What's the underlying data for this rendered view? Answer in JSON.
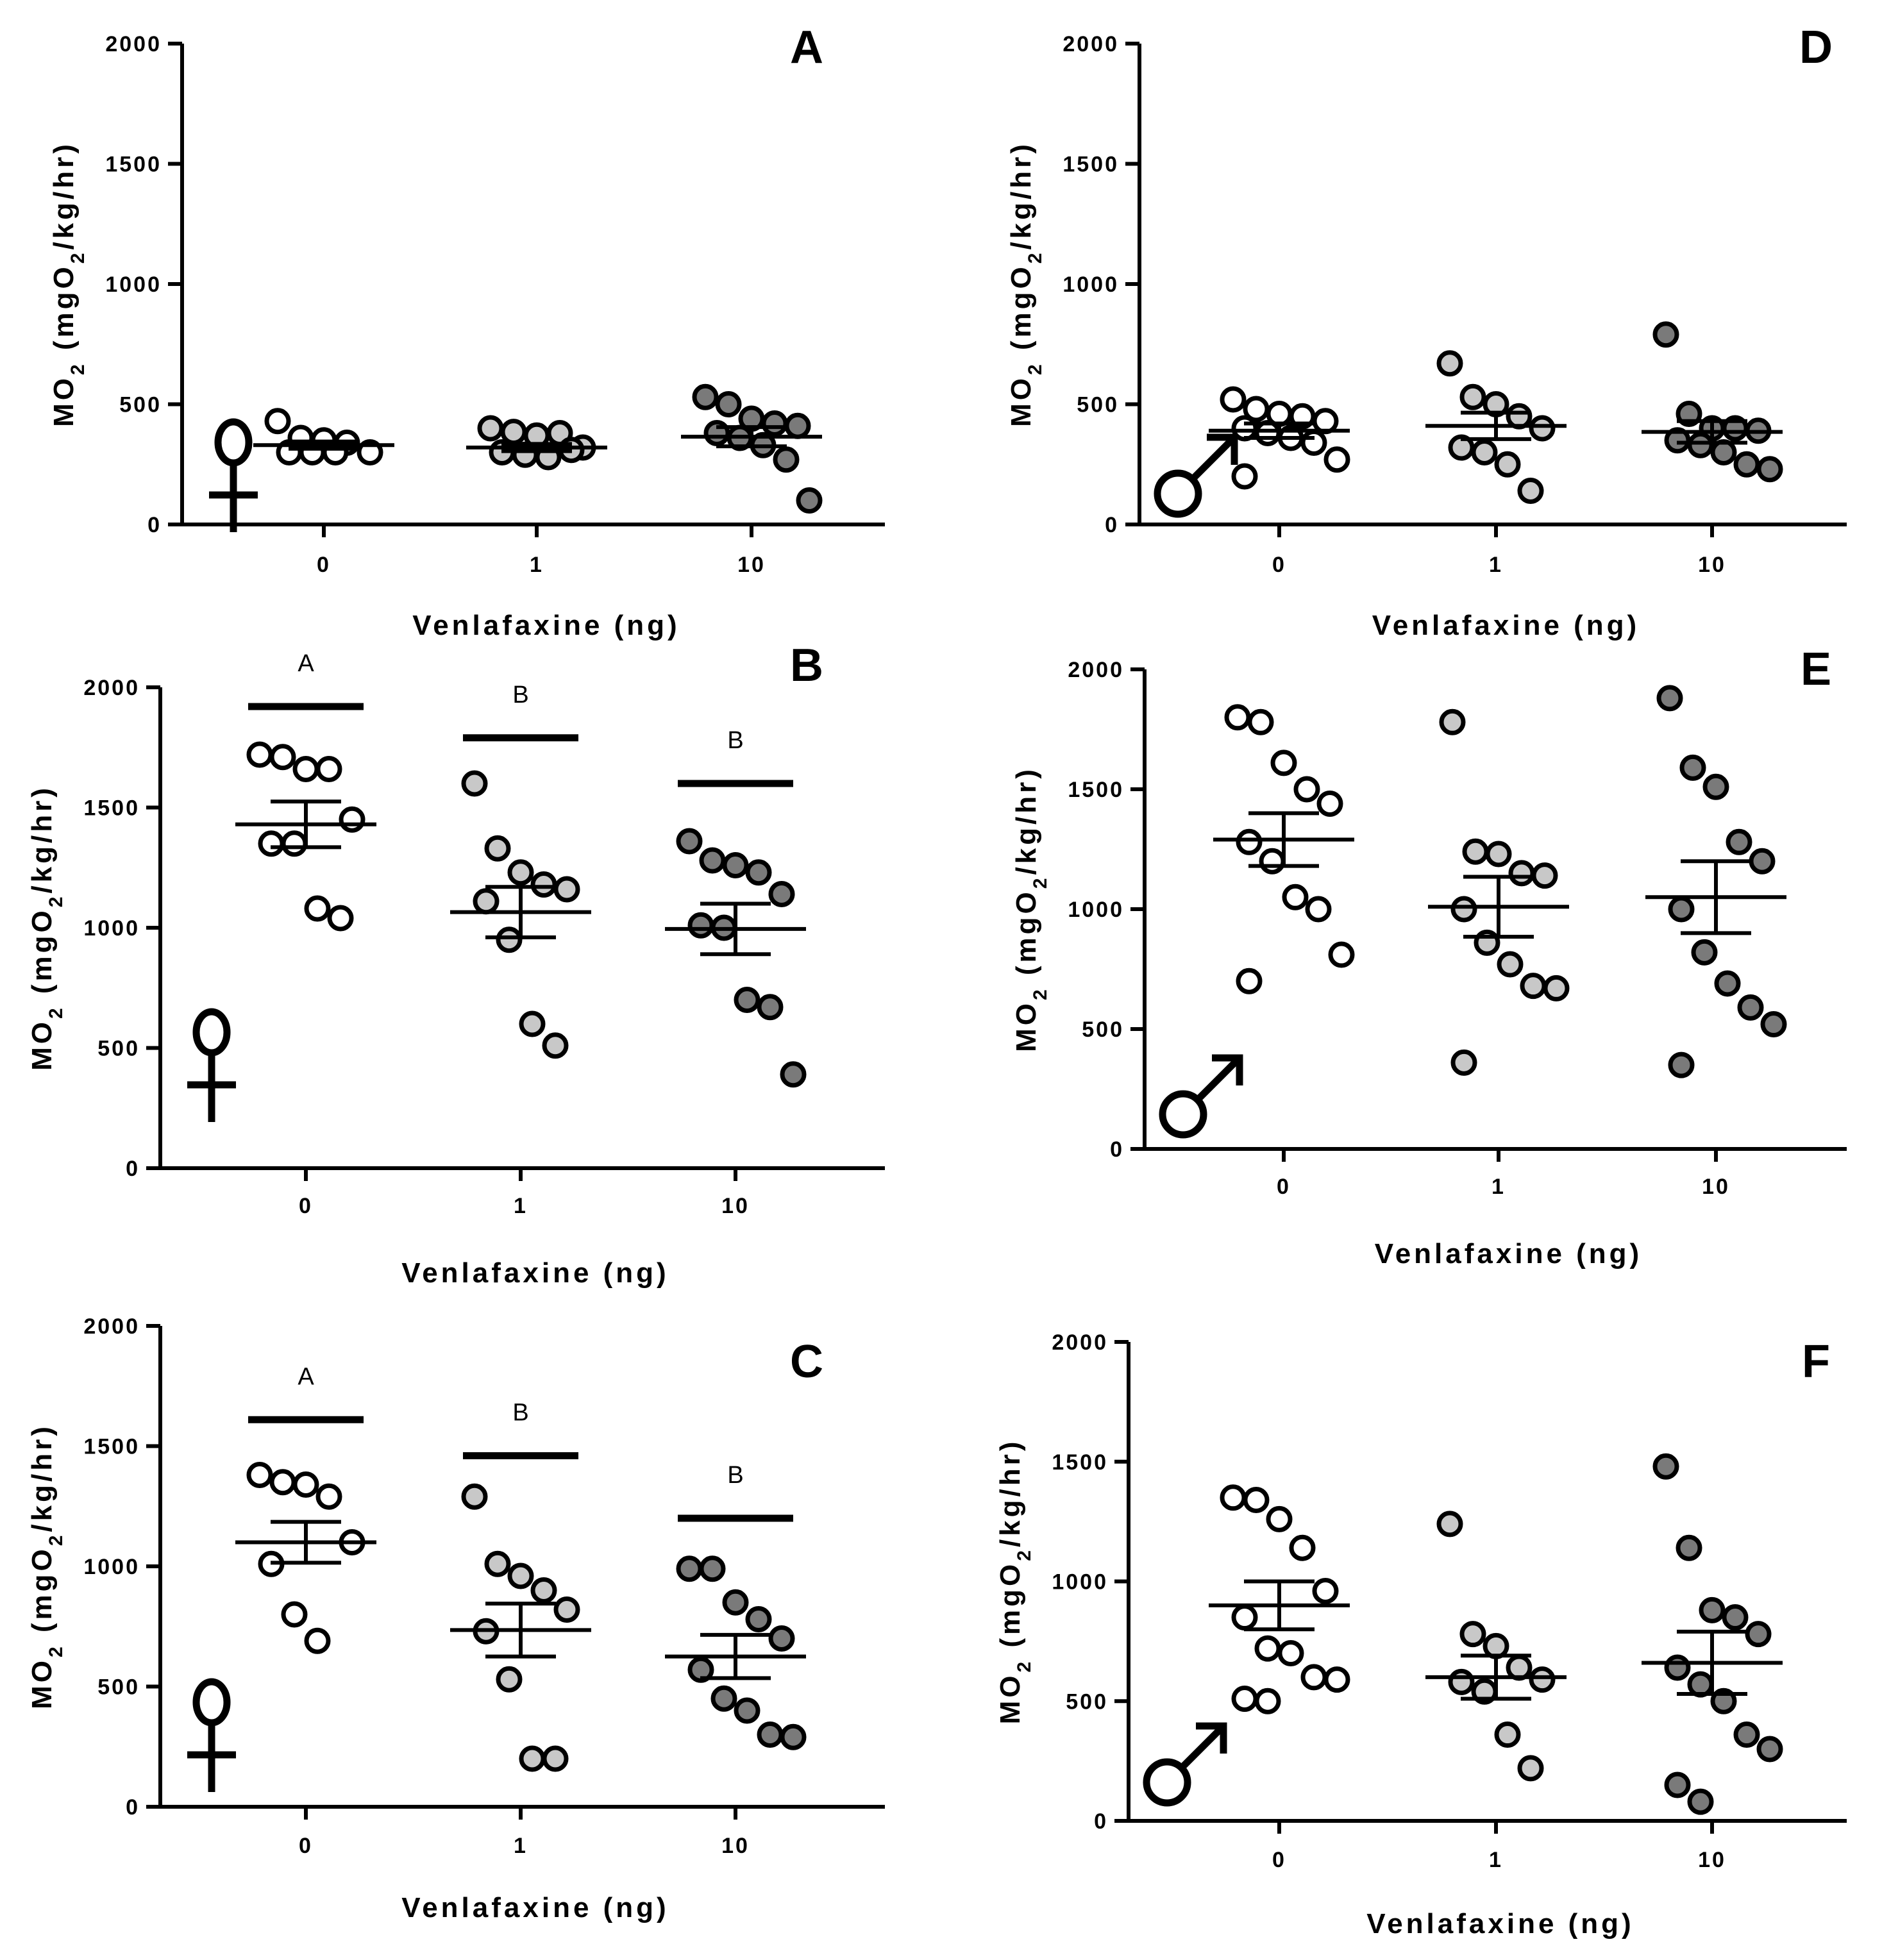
{
  "chart_data": [
    {
      "panel": "A",
      "type": "scatter",
      "sex": "female",
      "sex_symbol": "♀",
      "ylabel": "MO2 (mgO2/kg/hr)",
      "ylabel_main": "MO",
      "ylabel_sub": "2",
      "ylabel_rest": " (mgO",
      "ylabel_sub2": "2",
      "ylabel_end": "/kg/hr)",
      "xlabel": "Venlafaxine (ng)",
      "ylim": [
        0,
        2000
      ],
      "yticks": [
        "0",
        "500",
        "1000",
        "1500",
        "2000"
      ],
      "categories": [
        "0",
        "1",
        "10"
      ],
      "fills": [
        "#ffffff",
        "#c8c8c8",
        "#7a7a7a"
      ],
      "points": [
        [
          430,
          360,
          350,
          340,
          300,
          300,
          300,
          300
        ],
        [
          400,
          385,
          370,
          380,
          320,
          300,
          290,
          280,
          310
        ],
        [
          530,
          500,
          440,
          420,
          410,
          380,
          360,
          330,
          270,
          100
        ]
      ],
      "means": [
        330,
        320,
        365
      ],
      "sem": [
        15,
        15,
        40
      ],
      "sig_letters": [],
      "sig_bars": []
    },
    {
      "panel": "B",
      "type": "scatter",
      "sex": "female",
      "sex_symbol": "♀",
      "ylabel": "MO2 (mgO2/kg/hr)",
      "ylabel_main": "MO",
      "ylabel_sub": "2",
      "ylabel_rest": " (mgO",
      "ylabel_sub2": "2",
      "ylabel_end": "/kg/hr)",
      "xlabel": "Venlafaxine (ng)",
      "ylim": [
        0,
        2000
      ],
      "yticks": [
        "0",
        "500",
        "1000",
        "1500",
        "2000"
      ],
      "categories": [
        "0",
        "1",
        "10"
      ],
      "fills": [
        "#ffffff",
        "#c8c8c8",
        "#7a7a7a"
      ],
      "points": [
        [
          1720,
          1710,
          1660,
          1660,
          1450,
          1350,
          1350,
          1080,
          1040
        ],
        [
          1600,
          1330,
          1230,
          1180,
          1160,
          1110,
          950,
          600,
          510
        ],
        [
          1360,
          1280,
          1260,
          1230,
          1140,
          1010,
          1000,
          700,
          670,
          390
        ]
      ],
      "means": [
        1430,
        1065,
        995
      ],
      "sem": [
        95,
        105,
        105
      ],
      "sig_letters": [
        "A",
        "B",
        "B"
      ],
      "sig_bars": [
        1920,
        1790,
        1600
      ]
    },
    {
      "panel": "C",
      "type": "scatter",
      "sex": "female",
      "sex_symbol": "♀",
      "ylabel": "MO2 (mgO2/kg/hr)",
      "ylabel_main": "MO",
      "ylabel_sub": "2",
      "ylabel_rest": " (mgO",
      "ylabel_sub2": "2",
      "ylabel_end": "/kg/hr)",
      "xlabel": "Venlafaxine (ng)",
      "ylim": [
        0,
        2000
      ],
      "yticks": [
        "0",
        "500",
        "1000",
        "1500",
        "2000"
      ],
      "categories": [
        "0",
        "1",
        "10"
      ],
      "fills": [
        "#ffffff",
        "#c8c8c8",
        "#7a7a7a"
      ],
      "points": [
        [
          1380,
          1350,
          1340,
          1290,
          1100,
          1010,
          800,
          690
        ],
        [
          1290,
          1010,
          960,
          900,
          820,
          730,
          530,
          200,
          200
        ],
        [
          990,
          990,
          850,
          780,
          700,
          570,
          450,
          400,
          300,
          290
        ]
      ],
      "means": [
        1100,
        735,
        625
      ],
      "sem": [
        85,
        110,
        90
      ],
      "sig_letters": [
        "A",
        "B",
        "B"
      ],
      "sig_bars": [
        1610,
        1460,
        1200
      ]
    },
    {
      "panel": "D",
      "type": "scatter",
      "sex": "male",
      "sex_symbol": "♂",
      "ylabel": "MO2 (mgO2/kg/hr)",
      "ylabel_main": "MO",
      "ylabel_sub": "2",
      "ylabel_rest": " (mgO",
      "ylabel_sub2": "2",
      "ylabel_end": "/kg/hr)",
      "xlabel": "Venlafaxine (ng)",
      "ylim": [
        0,
        2000
      ],
      "yticks": [
        "0",
        "500",
        "1000",
        "1500",
        "2000"
      ],
      "categories": [
        "0",
        "1",
        "10"
      ],
      "fills": [
        "#ffffff",
        "#c8c8c8",
        "#7a7a7a"
      ],
      "points": [
        [
          520,
          480,
          460,
          450,
          430,
          400,
          380,
          360,
          340,
          270,
          200
        ],
        [
          670,
          530,
          500,
          450,
          400,
          320,
          300,
          250,
          140
        ],
        [
          790,
          460,
          400,
          400,
          390,
          350,
          330,
          300,
          250,
          230
        ]
      ],
      "means": [
        390,
        410,
        385
      ],
      "sem": [
        30,
        55,
        45
      ],
      "sig_letters": [],
      "sig_bars": []
    },
    {
      "panel": "E",
      "type": "scatter",
      "sex": "male",
      "sex_symbol": "♂",
      "ylabel": "MO2 (mgO2/kg/hr)",
      "ylabel_main": "MO",
      "ylabel_sub": "2",
      "ylabel_rest": " (mgO",
      "ylabel_sub2": "2",
      "ylabel_end": "/kg/hr)",
      "xlabel": "Venlafaxine (ng)",
      "ylim": [
        0,
        2000
      ],
      "yticks": [
        "0",
        "500",
        "1000",
        "1500",
        "2000"
      ],
      "categories": [
        "0",
        "1",
        "10"
      ],
      "fills": [
        "#ffffff",
        "#c8c8c8",
        "#7a7a7a"
      ],
      "points": [
        [
          1800,
          1780,
          1610,
          1500,
          1440,
          1280,
          1200,
          1050,
          1000,
          810,
          700
        ],
        [
          1780,
          1240,
          1230,
          1150,
          1140,
          1000,
          860,
          770,
          680,
          670,
          360
        ],
        [
          1880,
          1590,
          1510,
          1280,
          1200,
          1000,
          820,
          690,
          590,
          520,
          350
        ]
      ],
      "means": [
        1290,
        1010,
        1050
      ],
      "sem": [
        110,
        125,
        150
      ],
      "sig_letters": [],
      "sig_bars": []
    },
    {
      "panel": "F",
      "type": "scatter",
      "sex": "male",
      "sex_symbol": "♂",
      "ylabel": "MO2 (mgO2/kg/hr)",
      "ylabel_main": "MO",
      "ylabel_sub": "2",
      "ylabel_rest": " (mgO",
      "ylabel_sub2": "2",
      "ylabel_end": "/kg/hr)",
      "xlabel": "Venlafaxine (ng)",
      "ylim": [
        0,
        2000
      ],
      "yticks": [
        "0",
        "500",
        "1000",
        "1500",
        "2000"
      ],
      "categories": [
        "0",
        "1",
        "10"
      ],
      "fills": [
        "#ffffff",
        "#c8c8c8",
        "#7a7a7a"
      ],
      "points": [
        [
          1350,
          1340,
          1260,
          1140,
          960,
          850,
          720,
          700,
          600,
          590,
          510,
          500
        ],
        [
          1240,
          780,
          730,
          640,
          590,
          580,
          540,
          360,
          220
        ],
        [
          1480,
          1140,
          880,
          850,
          780,
          640,
          570,
          500,
          360,
          300,
          150,
          80
        ]
      ],
      "means": [
        900,
        600,
        660
      ],
      "sem": [
        100,
        90,
        130
      ],
      "sig_letters": [],
      "sig_bars": []
    }
  ]
}
